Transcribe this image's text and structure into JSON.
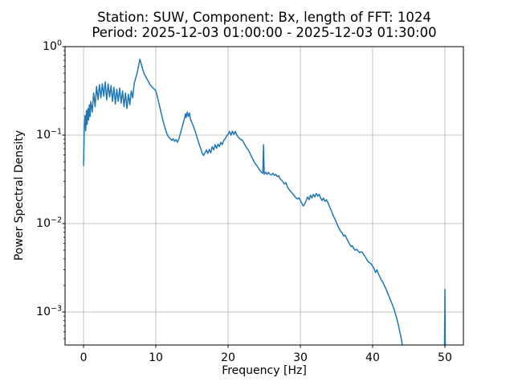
{
  "title": {
    "line1": "Station: SUW, Component: Bx, length of FFT: 1024",
    "line2": "Period: 2025-12-03 01:00:00 - 2025-12-03 01:30:00"
  },
  "chart_data": {
    "type": "line",
    "title": "Station: SUW, Component: Bx, length of FFT: 1024\nPeriod: 2025-12-03 01:00:00 - 2025-12-03 01:30:00",
    "xlabel": "Frequency [Hz]",
    "ylabel": "Power Spectral Density",
    "yscale": "log",
    "grid": true,
    "legend": false,
    "xlim": [
      -2.56,
      52.56
    ],
    "ylim": [
      0.000424,
      1.0
    ],
    "xticks": [
      0,
      10,
      20,
      30,
      40,
      50
    ],
    "ytick_exponents": [
      0,
      -1,
      -2,
      -3
    ],
    "line_color": "#1f77b4",
    "grid_color": "#b0b0b0",
    "spine_color": "#000000",
    "background_color": "#ffffff",
    "series": [
      {
        "name": "PSD",
        "points": [
          [
            0,
            0.045
          ],
          [
            0.1,
            0.12
          ],
          [
            0.2,
            0.166
          ],
          [
            0.3,
            0.112
          ],
          [
            0.4,
            0.19
          ],
          [
            0.5,
            0.132
          ],
          [
            0.6,
            0.2
          ],
          [
            0.7,
            0.148
          ],
          [
            0.8,
            0.22
          ],
          [
            0.9,
            0.162
          ],
          [
            1,
            0.24
          ],
          [
            1.2,
            0.182
          ],
          [
            1.4,
            0.3
          ],
          [
            1.6,
            0.209
          ],
          [
            1.8,
            0.355
          ],
          [
            2,
            0.25
          ],
          [
            2.2,
            0.372
          ],
          [
            2.4,
            0.263
          ],
          [
            2.6,
            0.38
          ],
          [
            2.8,
            0.275
          ],
          [
            3,
            0.4
          ],
          [
            3.2,
            0.25
          ],
          [
            3.4,
            0.38
          ],
          [
            3.6,
            0.27
          ],
          [
            3.8,
            0.363
          ],
          [
            4,
            0.24
          ],
          [
            4.2,
            0.347
          ],
          [
            4.4,
            0.224
          ],
          [
            4.6,
            0.33
          ],
          [
            4.8,
            0.24
          ],
          [
            5,
            0.34
          ],
          [
            5.2,
            0.23
          ],
          [
            5.4,
            0.316
          ],
          [
            5.6,
            0.209
          ],
          [
            5.8,
            0.3
          ],
          [
            6,
            0.2
          ],
          [
            6.2,
            0.29
          ],
          [
            6.4,
            0.22
          ],
          [
            6.6,
            0.316
          ],
          [
            6.8,
            0.263
          ],
          [
            7,
            0.38
          ],
          [
            7.2,
            0.437
          ],
          [
            7.4,
            0.5
          ],
          [
            7.6,
            0.6
          ],
          [
            7.8,
            0.72
          ],
          [
            7.9,
            0.676
          ],
          [
            8,
            0.63
          ],
          [
            8.2,
            0.55
          ],
          [
            8.4,
            0.49
          ],
          [
            8.6,
            0.457
          ],
          [
            8.8,
            0.427
          ],
          [
            9,
            0.4
          ],
          [
            9.2,
            0.372
          ],
          [
            9.5,
            0.347
          ],
          [
            9.8,
            0.33
          ],
          [
            10,
            0.316
          ],
          [
            10.2,
            0.275
          ],
          [
            10.4,
            0.234
          ],
          [
            10.6,
            0.2
          ],
          [
            10.8,
            0.17
          ],
          [
            11,
            0.145
          ],
          [
            11.2,
            0.126
          ],
          [
            11.4,
            0.112
          ],
          [
            11.6,
            0.1
          ],
          [
            11.8,
            0.095
          ],
          [
            12,
            0.091
          ],
          [
            12.2,
            0.087
          ],
          [
            12.4,
            0.091
          ],
          [
            12.6,
            0.085
          ],
          [
            12.8,
            0.089
          ],
          [
            13,
            0.083
          ],
          [
            13.2,
            0.091
          ],
          [
            13.4,
            0.105
          ],
          [
            13.6,
            0.12
          ],
          [
            13.8,
            0.138
          ],
          [
            14,
            0.158
          ],
          [
            14.1,
            0.174
          ],
          [
            14.2,
            0.158
          ],
          [
            14.35,
            0.182
          ],
          [
            14.5,
            0.162
          ],
          [
            14.65,
            0.178
          ],
          [
            14.8,
            0.151
          ],
          [
            15,
            0.138
          ],
          [
            15.2,
            0.126
          ],
          [
            15.5,
            0.107
          ],
          [
            15.8,
            0.089
          ],
          [
            16,
            0.079
          ],
          [
            16.2,
            0.071
          ],
          [
            16.4,
            0.063
          ],
          [
            16.6,
            0.059
          ],
          [
            16.8,
            0.063
          ],
          [
            17,
            0.068
          ],
          [
            17.2,
            0.062
          ],
          [
            17.4,
            0.069
          ],
          [
            17.6,
            0.063
          ],
          [
            17.8,
            0.074
          ],
          [
            18,
            0.068
          ],
          [
            18.2,
            0.078
          ],
          [
            18.4,
            0.071
          ],
          [
            18.6,
            0.079
          ],
          [
            18.8,
            0.074
          ],
          [
            19,
            0.083
          ],
          [
            19.2,
            0.078
          ],
          [
            19.4,
            0.087
          ],
          [
            19.6,
            0.091
          ],
          [
            19.8,
            0.098
          ],
          [
            20,
            0.102
          ],
          [
            20.2,
            0.11
          ],
          [
            20.4,
            0.1
          ],
          [
            20.6,
            0.111
          ],
          [
            20.8,
            0.102
          ],
          [
            21,
            0.11
          ],
          [
            21.2,
            0.1
          ],
          [
            21.4,
            0.095
          ],
          [
            21.6,
            0.091
          ],
          [
            21.8,
            0.089
          ],
          [
            22,
            0.087
          ],
          [
            22.2,
            0.081
          ],
          [
            22.4,
            0.076
          ],
          [
            22.6,
            0.071
          ],
          [
            22.8,
            0.068
          ],
          [
            23,
            0.063
          ],
          [
            23.2,
            0.058
          ],
          [
            23.4,
            0.054
          ],
          [
            23.6,
            0.05
          ],
          [
            23.8,
            0.047
          ],
          [
            24,
            0.045
          ],
          [
            24.2,
            0.042
          ],
          [
            24.4,
            0.04
          ],
          [
            24.6,
            0.038
          ],
          [
            24.8,
            0.037
          ],
          [
            24.9,
            0.078
          ],
          [
            25,
            0.036
          ],
          [
            25.2,
            0.038
          ],
          [
            25.4,
            0.036
          ],
          [
            25.6,
            0.038
          ],
          [
            25.8,
            0.036
          ],
          [
            26,
            0.0355
          ],
          [
            26.2,
            0.037
          ],
          [
            26.4,
            0.035
          ],
          [
            26.6,
            0.036
          ],
          [
            26.8,
            0.034
          ],
          [
            27,
            0.0347
          ],
          [
            27.2,
            0.032
          ],
          [
            27.4,
            0.031
          ],
          [
            27.6,
            0.0295
          ],
          [
            27.8,
            0.028
          ],
          [
            28,
            0.029
          ],
          [
            28.2,
            0.026
          ],
          [
            28.4,
            0.0245
          ],
          [
            28.6,
            0.0234
          ],
          [
            28.8,
            0.0224
          ],
          [
            29,
            0.0214
          ],
          [
            29.2,
            0.0204
          ],
          [
            29.4,
            0.0195
          ],
          [
            29.6,
            0.019
          ],
          [
            29.8,
            0.0195
          ],
          [
            30,
            0.0182
          ],
          [
            30.2,
            0.017
          ],
          [
            30.4,
            0.0158
          ],
          [
            30.6,
            0.0166
          ],
          [
            30.8,
            0.0182
          ],
          [
            31,
            0.02
          ],
          [
            31.2,
            0.0186
          ],
          [
            31.4,
            0.0209
          ],
          [
            31.6,
            0.0195
          ],
          [
            31.8,
            0.0214
          ],
          [
            32,
            0.02
          ],
          [
            32.2,
            0.0219
          ],
          [
            32.4,
            0.0204
          ],
          [
            32.6,
            0.0214
          ],
          [
            32.8,
            0.0195
          ],
          [
            33,
            0.0182
          ],
          [
            33.2,
            0.0195
          ],
          [
            33.4,
            0.0178
          ],
          [
            33.6,
            0.0186
          ],
          [
            33.8,
            0.0174
          ],
          [
            34,
            0.0158
          ],
          [
            34.2,
            0.0145
          ],
          [
            34.4,
            0.0132
          ],
          [
            34.6,
            0.012
          ],
          [
            34.8,
            0.0112
          ],
          [
            35,
            0.0102
          ],
          [
            35.2,
            0.0093
          ],
          [
            35.4,
            0.0087
          ],
          [
            35.6,
            0.0081
          ],
          [
            35.8,
            0.0078
          ],
          [
            36,
            0.0072
          ],
          [
            36.2,
            0.0074
          ],
          [
            36.4,
            0.0068
          ],
          [
            36.6,
            0.0063
          ],
          [
            36.8,
            0.0059
          ],
          [
            37,
            0.0055
          ],
          [
            37.2,
            0.0056
          ],
          [
            37.4,
            0.0052
          ],
          [
            37.6,
            0.005
          ],
          [
            37.8,
            0.0051
          ],
          [
            38,
            0.0049
          ],
          [
            38.2,
            0.0047
          ],
          [
            38.4,
            0.0048
          ],
          [
            38.6,
            0.0047
          ],
          [
            38.8,
            0.0044
          ],
          [
            39,
            0.0042
          ],
          [
            39.2,
            0.0039
          ],
          [
            39.4,
            0.0037
          ],
          [
            39.6,
            0.0036
          ],
          [
            39.8,
            0.0035
          ],
          [
            40,
            0.0033
          ],
          [
            40.2,
            0.0031
          ],
          [
            40.4,
            0.0028
          ],
          [
            40.6,
            0.003
          ],
          [
            40.8,
            0.0027
          ],
          [
            41,
            0.0025
          ],
          [
            41.2,
            0.0023
          ],
          [
            41.4,
            0.0022
          ],
          [
            41.6,
            0.002
          ],
          [
            41.8,
            0.00186
          ],
          [
            42,
            0.0017
          ],
          [
            42.2,
            0.00155
          ],
          [
            42.4,
            0.00141
          ],
          [
            42.6,
            0.00129
          ],
          [
            42.8,
            0.00117
          ],
          [
            43,
            0.00105
          ],
          [
            43.2,
            0.00093
          ],
          [
            43.4,
            0.00081
          ],
          [
            43.6,
            0.00069
          ],
          [
            43.8,
            0.00058
          ],
          [
            44,
            0.00048
          ],
          [
            44.2,
            0.00038
          ],
          [
            44.4,
            0.00028
          ],
          null,
          [
            49.93,
            0.00028
          ],
          [
            50,
            0.0018
          ],
          [
            50.07,
            0.00028
          ]
        ]
      }
    ]
  }
}
